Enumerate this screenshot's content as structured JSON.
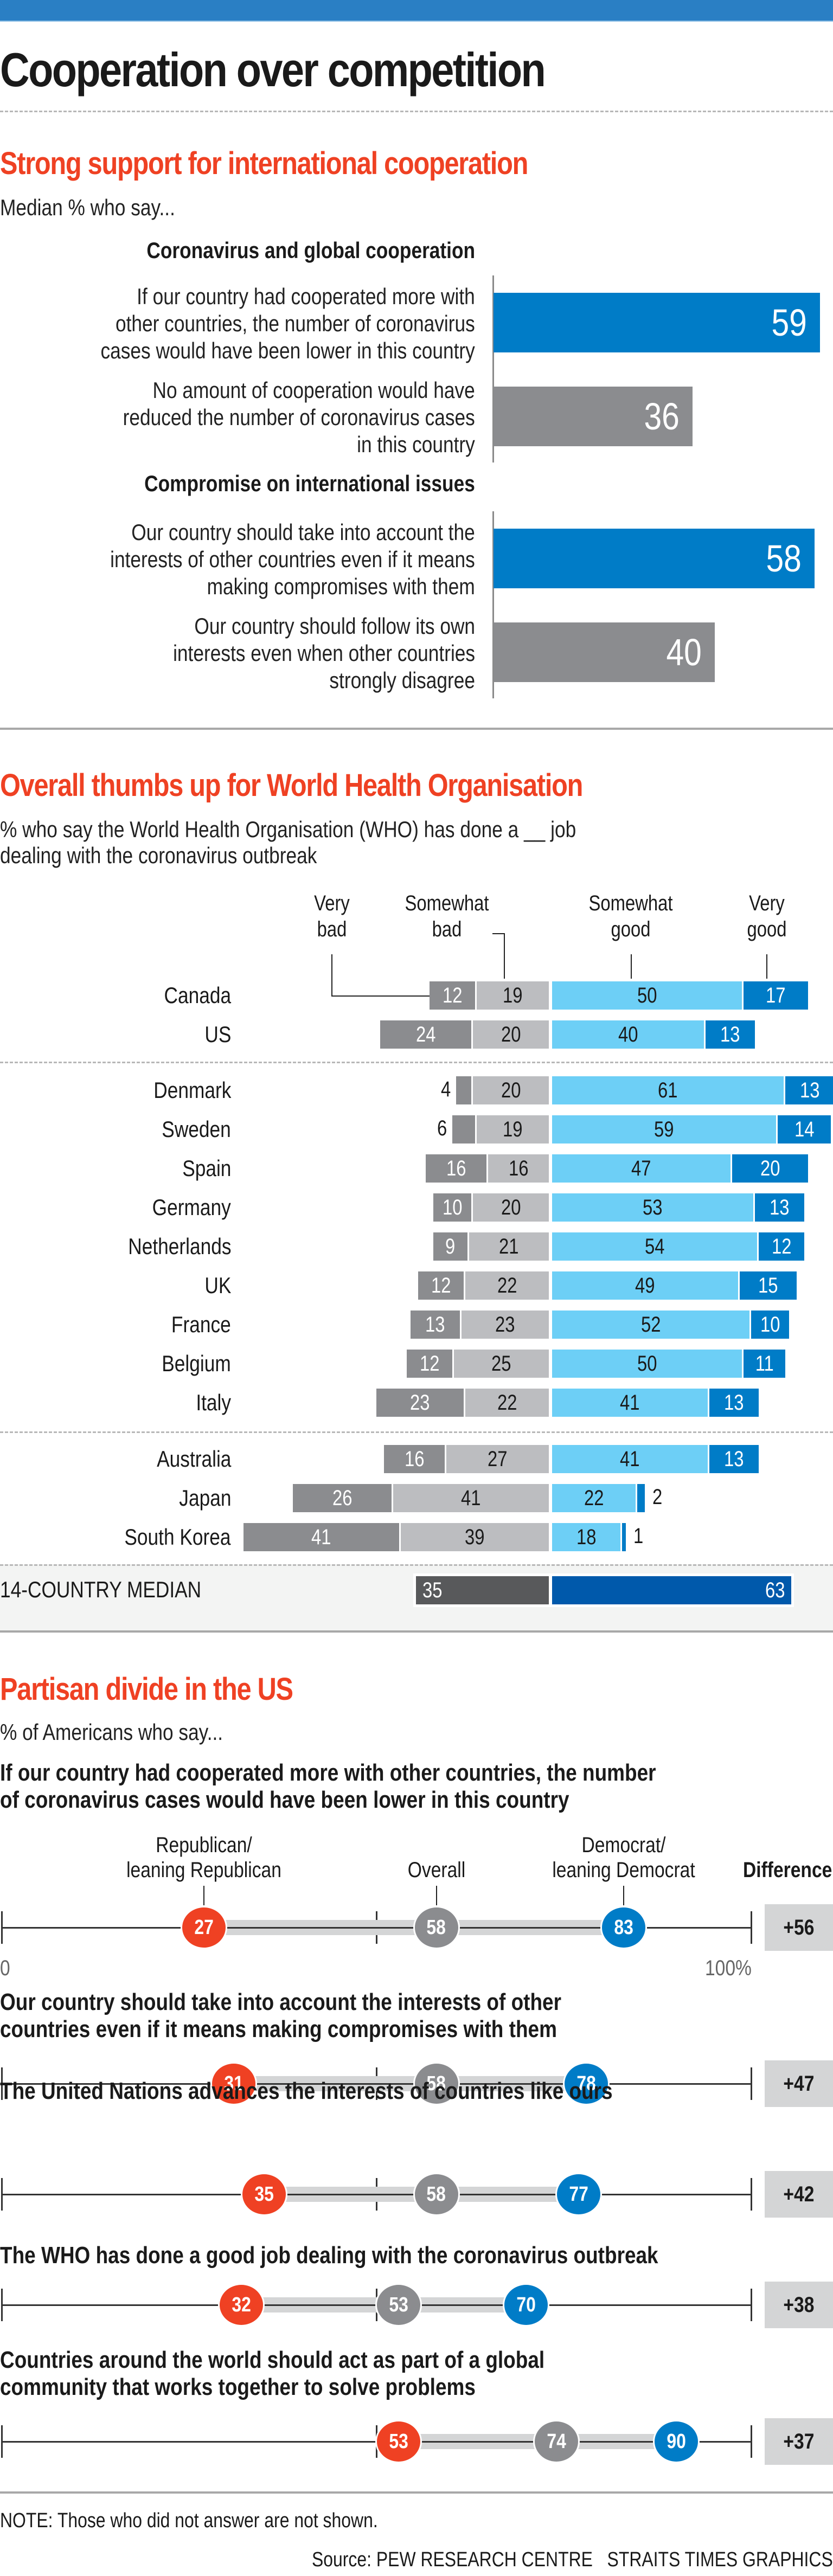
{
  "title": "Cooperation over competition",
  "section1": {
    "title": "Strong support for international cooperation",
    "subtitle": "Median % who say...",
    "groups": [
      {
        "heading": "Coronavirus and global cooperation",
        "items": [
          {
            "lines": [
              "If our country had cooperated more with",
              "other countries, the number of coronavirus",
              "cases would have been lower in this country"
            ],
            "value": 59,
            "kind": "yes"
          },
          {
            "lines": [
              "No amount of cooperation would have",
              "reduced the number of coronavirus cases",
              "in this country"
            ],
            "value": 36,
            "kind": "no"
          }
        ]
      },
      {
        "heading": "Compromise on international issues",
        "items": [
          {
            "lines": [
              "Our country should take into account the",
              "interests of other countries even if it means",
              "making compromises with them"
            ],
            "value": 58,
            "kind": "yes"
          },
          {
            "lines": [
              "Our country should follow its own",
              "interests even when other countries",
              "strongly disagree"
            ],
            "value": 40,
            "kind": "no"
          }
        ]
      }
    ]
  },
  "section2": {
    "title": "Overall thumbs up for World Health Organisation",
    "subtitle_lines": [
      "% who say the World Health Organisation (WHO) has done a __ job",
      "dealing with the coronavirus outbreak"
    ],
    "category_labels": {
      "very_bad": [
        "Very",
        "bad"
      ],
      "somewhat_bad": [
        "Somewhat",
        "bad"
      ],
      "somewhat_good": [
        "Somewhat",
        "good"
      ],
      "very_good": [
        "Very",
        "good"
      ]
    },
    "median_label": "14-COUNTRY MEDIAN",
    "median": {
      "bad": 35,
      "good": 63
    }
  },
  "chart_data": [
    {
      "type": "bar",
      "title": "Strong support for international cooperation",
      "subtitle": "Median % who say...",
      "categories": [
        "If our country had cooperated more with other countries, the number of coronavirus cases would have been lower in this country",
        "No amount of cooperation would have reduced the number of coronavirus cases in this country",
        "Our country should take into account the interests of other countries even if it means making compromises with them",
        "Our country should follow its own interests even when other countries strongly disagree"
      ],
      "groups": [
        "Coronavirus and global cooperation",
        "Coronavirus and global cooperation",
        "Compromise on international issues",
        "Compromise on international issues"
      ],
      "values": [
        59,
        36,
        58,
        40
      ],
      "xlabel": "",
      "ylabel": "",
      "xlim": [
        0,
        60
      ]
    },
    {
      "type": "bar",
      "stacked": "diverging",
      "title": "Overall thumbs up for World Health Organisation",
      "subtitle": "% who say the World Health Organisation (WHO) has done a __ job dealing with the coronavirus outbreak",
      "categories": [
        "Canada",
        "US",
        "Denmark",
        "Sweden",
        "Spain",
        "Germany",
        "Netherlands",
        "UK",
        "France",
        "Belgium",
        "Italy",
        "Australia",
        "Japan",
        "South Korea"
      ],
      "groups_separator_after": [
        "US",
        "Italy"
      ],
      "series": [
        {
          "name": "Very bad",
          "color": "#8b8c8f",
          "values": [
            12,
            24,
            4,
            6,
            16,
            10,
            9,
            12,
            13,
            12,
            23,
            16,
            26,
            41
          ]
        },
        {
          "name": "Somewhat bad",
          "color": "#bcbdc0",
          "values": [
            19,
            20,
            20,
            19,
            16,
            20,
            21,
            22,
            23,
            25,
            22,
            27,
            41,
            39
          ]
        },
        {
          "name": "Somewhat good",
          "color": "#6dcff6",
          "values": [
            50,
            40,
            61,
            59,
            47,
            53,
            54,
            49,
            52,
            50,
            41,
            41,
            22,
            18
          ]
        },
        {
          "name": "Very good",
          "color": "#007cc7",
          "values": [
            17,
            13,
            13,
            14,
            20,
            13,
            12,
            15,
            10,
            11,
            13,
            13,
            2,
            1
          ]
        }
      ],
      "summary": {
        "label": "14-COUNTRY MEDIAN",
        "bad": 35,
        "good": 63
      },
      "legend": "top"
    },
    {
      "type": "scatter",
      "subtype": "dot-plot",
      "title": "Partisan divide in the US",
      "subtitle": "% of Americans who say...",
      "xlim": [
        0,
        100
      ],
      "axis_labels": [
        "0",
        "100%"
      ],
      "series_names": [
        "Republican/leaning Republican",
        "Overall",
        "Democrat/leaning Democrat"
      ],
      "colors": {
        "rep": "#ef4123",
        "overall": "#8b8c8f",
        "dem": "#007cc7"
      },
      "rows": [
        {
          "question": "If our country had cooperated more with other countries, the number of coronavirus cases would have been lower in this country",
          "rep": 27,
          "overall": 58,
          "dem": 83,
          "difference": "+56"
        },
        {
          "question": "Our country should take into account the interests of other countries even if it means making compromises with them",
          "rep": 31,
          "overall": 58,
          "dem": 78,
          "difference": "+47"
        },
        {
          "question": "The United Nations advances the interests of countries like ours",
          "rep": 35,
          "overall": 58,
          "dem": 77,
          "difference": "+42"
        },
        {
          "question": "The WHO has done a good job dealing with the coronavirus outbreak",
          "rep": 32,
          "overall": 53,
          "dem": 70,
          "difference": "+38"
        },
        {
          "question": "Countries around the world should act as part of a global community that works together to solve problems",
          "rep": 53,
          "overall": 74,
          "dem": 90,
          "difference": "+37"
        }
      ]
    }
  ],
  "section3": {
    "title": "Partisan divide in the US",
    "subtitle": "% of Americans who say...",
    "legend": {
      "rep": [
        "Republican/",
        "leaning Republican"
      ],
      "overall": [
        "Overall"
      ],
      "dem": [
        "Democrat/",
        "leaning Democrat"
      ],
      "difference": "Difference"
    },
    "axis_min_label": "0",
    "axis_max_label": "100%",
    "questions": [
      [
        "If our country had cooperated more with other countries, the number",
        "of coronavirus cases would have been lower in this country"
      ],
      [
        "Our country should take into account the interests of other",
        "countries even if it means making compromises with them"
      ],
      [
        "The United Nations advances the interests of countries like ours"
      ],
      [
        "The WHO has done a good job dealing with the coronavirus outbreak"
      ],
      [
        "Countries around the world should act as part of a global",
        "community that works together to solve problems"
      ]
    ]
  },
  "footer": {
    "note": "NOTE: Those who did not answer are not shown.",
    "source": "Source: PEW RESEARCH CENTRE",
    "credit": "STRAITS TIMES GRAPHICS"
  }
}
